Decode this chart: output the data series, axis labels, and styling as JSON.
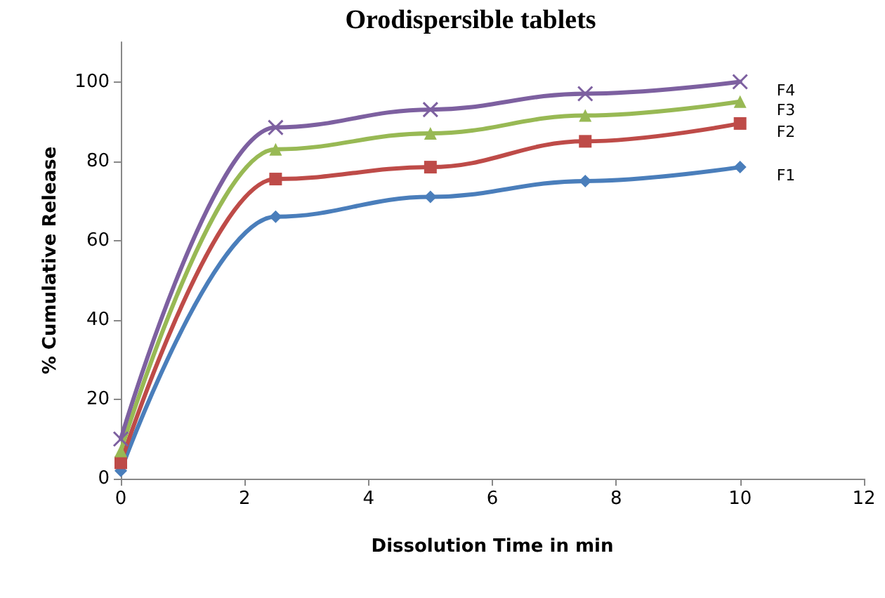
{
  "chart_data": {
    "type": "line",
    "title": "Orodispersible tablets",
    "xlabel": "Dissolution Time in min",
    "ylabel": "% Cumulative Release",
    "x": [
      0,
      2.5,
      5,
      7.5,
      10
    ],
    "series": [
      {
        "name": "F1",
        "color": "#4a7ebb",
        "marker": "diamond",
        "values": [
          2,
          66,
          71,
          75,
          78.5
        ]
      },
      {
        "name": "F2",
        "color": "#be4b48",
        "marker": "square",
        "values": [
          4,
          75.5,
          78.5,
          85,
          89.5
        ]
      },
      {
        "name": "F3",
        "color": "#98b954",
        "marker": "triangle",
        "values": [
          7,
          83,
          87,
          91.5,
          95
        ]
      },
      {
        "name": "F4",
        "color": "#7d60a0",
        "marker": "cross",
        "values": [
          10,
          88.5,
          93,
          97,
          100
        ]
      }
    ],
    "xlim": [
      0,
      12
    ],
    "xticks": [
      0,
      2,
      4,
      6,
      8,
      10,
      12
    ],
    "ylim": [
      0,
      110
    ],
    "yticks": [
      0,
      20,
      40,
      60,
      80,
      100
    ],
    "grid": false,
    "legend": false,
    "line_style": "solid"
  }
}
